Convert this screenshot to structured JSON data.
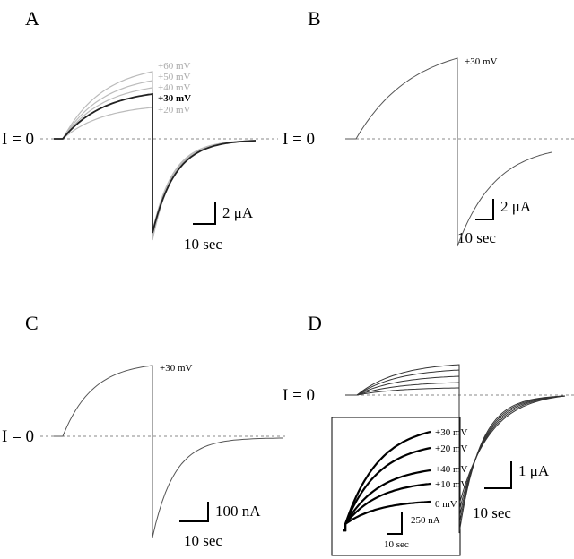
{
  "panels": [
    {
      "label": "A",
      "zero_label": "I = 0",
      "traces": [
        "+60 mV",
        "+50 mV",
        "+40 mV",
        "+30 mV",
        "+20 mV"
      ],
      "scale_y": "2 μA",
      "scale_x": "10 sec"
    },
    {
      "label": "B",
      "zero_label": "I = 0",
      "traces": [
        "+30 mV"
      ],
      "scale_y": "2 μA",
      "scale_x": "10 sec"
    },
    {
      "label": "C",
      "zero_label": "I = 0",
      "traces": [
        "+30 mV"
      ],
      "scale_y": "100 nA",
      "scale_x": "10 sec"
    },
    {
      "label": "D",
      "zero_label": "I = 0",
      "scale_y": "1 μA",
      "scale_x": "10 sec",
      "inset": {
        "traces": [
          "+30 mV",
          "+20 mV",
          "+40 mV",
          "+10 mV",
          "0 mV"
        ],
        "scale_y": "250 nA",
        "scale_x": "10 sec"
      }
    }
  ]
}
